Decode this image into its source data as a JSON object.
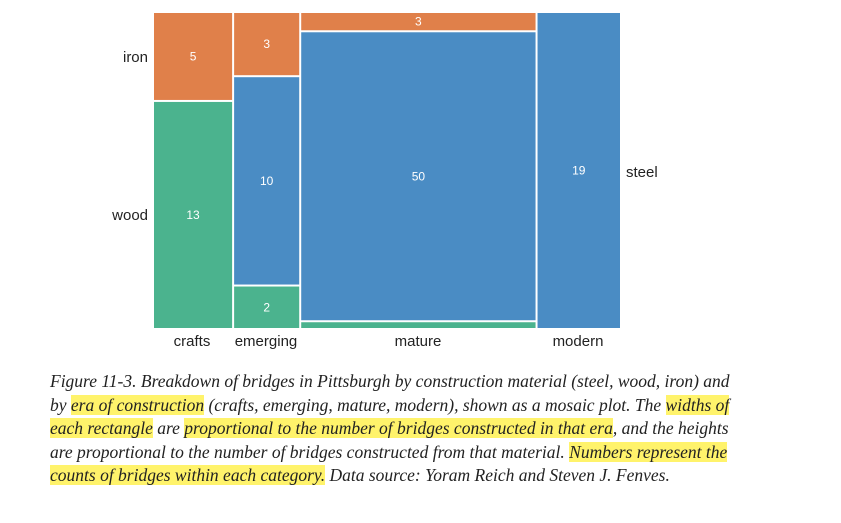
{
  "chart_data": {
    "type": "mosaic",
    "categories": [
      "crafts",
      "emerging",
      "mature",
      "modern"
    ],
    "series": [
      {
        "name": "iron",
        "values": [
          5,
          3,
          3,
          0
        ]
      },
      {
        "name": "steel",
        "values": [
          0,
          10,
          50,
          19
        ]
      },
      {
        "name": "wood",
        "values": [
          13,
          2,
          1,
          0
        ]
      }
    ],
    "cell_labels": [
      {
        "category": "crafts",
        "material": "iron",
        "text": "5"
      },
      {
        "category": "crafts",
        "material": "wood",
        "text": "13"
      },
      {
        "category": "emerging",
        "material": "iron",
        "text": "3"
      },
      {
        "category": "emerging",
        "material": "steel",
        "text": "10"
      },
      {
        "category": "emerging",
        "material": "wood",
        "text": "2"
      },
      {
        "category": "mature",
        "material": "iron",
        "text": "3"
      },
      {
        "category": "mature",
        "material": "steel",
        "text": "50"
      },
      {
        "category": "modern",
        "material": "steel",
        "text": "19"
      }
    ],
    "row_labels": [
      "iron",
      "wood",
      "steel"
    ],
    "colors": {
      "iron": "#e0804a",
      "steel": "#4a8cc4",
      "wood": "#4bb38e"
    }
  },
  "caption": {
    "segments": [
      {
        "text": "Figure 11-3. Breakdown of bridges in Pittsburgh by construction material (steel, wood, iron) and by ",
        "highlight": false
      },
      {
        "text": "era of construction",
        "highlight": true
      },
      {
        "text": " (crafts, emerging, mature, modern), shown as a mosaic plot. The ",
        "highlight": false
      },
      {
        "text": "widths of each rectangle",
        "highlight": true
      },
      {
        "text": " are ",
        "highlight": false
      },
      {
        "text": "proportional to the number of bridges constructed in that era",
        "highlight": true
      },
      {
        "text": ", and the heights are proportional to the number of bridges constructed from that material. ",
        "highlight": false
      },
      {
        "text": "Numbers represent the counts of bridges within each category.",
        "highlight": true
      },
      {
        "text": " Data source: Yoram Reich and Steven J. Fenves.",
        "highlight": false
      }
    ],
    "highlight_color": "#fff36b"
  }
}
